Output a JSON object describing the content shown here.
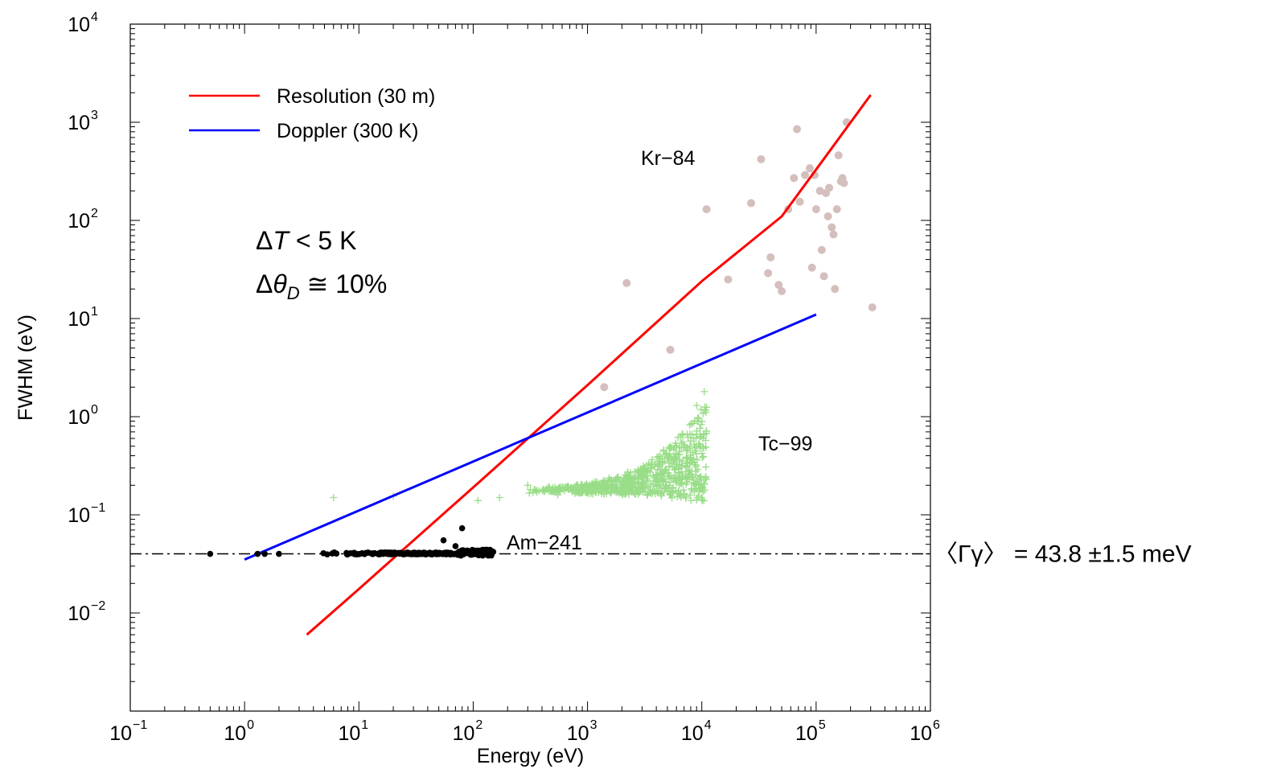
{
  "chart_data": {
    "type": "scatter",
    "x_scale": "log",
    "y_scale": "log",
    "xlabel": "Energy (eV)",
    "ylabel": "FWHM (eV)",
    "xlim": [
      0.1,
      1000000
    ],
    "ylim": [
      0.001,
      10000
    ],
    "x_ticks": [
      {
        "base": "10",
        "exp": "−1"
      },
      {
        "base": "10",
        "exp": "0"
      },
      {
        "base": "10",
        "exp": "1"
      },
      {
        "base": "10",
        "exp": "2"
      },
      {
        "base": "10",
        "exp": "3"
      },
      {
        "base": "10",
        "exp": "4"
      },
      {
        "base": "10",
        "exp": "5"
      },
      {
        "base": "10",
        "exp": "6"
      }
    ],
    "y_ticks": [
      {
        "base": "10",
        "exp": "−2"
      },
      {
        "base": "10",
        "exp": "−1"
      },
      {
        "base": "10",
        "exp": "0"
      },
      {
        "base": "10",
        "exp": "1"
      },
      {
        "base": "10",
        "exp": "2"
      },
      {
        "base": "10",
        "exp": "3"
      },
      {
        "base": "10",
        "exp": "4"
      }
    ],
    "grid": false,
    "legend_position": "top-left",
    "legend": [
      {
        "label": "Resolution (30 m)",
        "color": "#ff0000"
      },
      {
        "label": "Doppler (300 K)",
        "color": "#0000ff"
      }
    ],
    "lines": [
      {
        "name": "Resolution (30 m)",
        "color": "#ff0000",
        "x": [
          3.5,
          10,
          20,
          100,
          1000,
          10000,
          50000,
          100000,
          300000
        ],
        "y": [
          0.006,
          0.0175,
          0.036,
          0.19,
          2.1,
          24,
          110,
          330,
          1900
        ]
      },
      {
        "name": "Doppler (300 K)",
        "color": "#0000ff",
        "x": [
          1,
          100000
        ],
        "y": [
          0.035,
          11
        ]
      }
    ],
    "reference_line": {
      "y": 0.04,
      "style": "dash-dot",
      "color": "#000000",
      "label": "〈Γγ〉 = 43.8 ±1.5 meV"
    },
    "series": [
      {
        "name": "Kr-84",
        "label_text": "Kr−84",
        "marker": "circle",
        "color": "#d4bfbd",
        "points": [
          [
            1400,
            2
          ],
          [
            2200,
            23
          ],
          [
            5300,
            4.8
          ],
          [
            11000,
            130
          ],
          [
            17000,
            25
          ],
          [
            27000,
            150
          ],
          [
            33000,
            420
          ],
          [
            38000,
            29
          ],
          [
            40000,
            42
          ],
          [
            47000,
            22
          ],
          [
            50000,
            19
          ],
          [
            57000,
            130
          ],
          [
            64000,
            270
          ],
          [
            68000,
            850
          ],
          [
            72000,
            155
          ],
          [
            80000,
            290
          ],
          [
            88000,
            340
          ],
          [
            92000,
            33
          ],
          [
            97000,
            290
          ],
          [
            100000,
            130
          ],
          [
            108000,
            200
          ],
          [
            112000,
            50
          ],
          [
            117000,
            27
          ],
          [
            122000,
            190
          ],
          [
            127000,
            110
          ],
          [
            130000,
            215
          ],
          [
            137000,
            85
          ],
          [
            142000,
            72
          ],
          [
            146000,
            20
          ],
          [
            152000,
            130
          ],
          [
            157000,
            460
          ],
          [
            165000,
            250
          ],
          [
            170000,
            270
          ],
          [
            175000,
            240
          ],
          [
            185000,
            1000
          ],
          [
            310000,
            13
          ]
        ]
      },
      {
        "name": "Tc-99",
        "label_text": "Tc−99",
        "marker": "plus",
        "color": "#99dd88",
        "generator": {
          "x_min": 300,
          "x_max": 11000,
          "count": 700,
          "seed": 7,
          "base_y": 0.17,
          "outliers": [
            [
              6,
              0.15
            ],
            [
              20,
              0.155
            ],
            [
              110,
              0.14
            ],
            [
              170,
              0.15
            ],
            [
              300,
              0.2
            ],
            [
              550,
              0.16
            ],
            [
              9000,
              1.3
            ],
            [
              10500,
              1.8
            ]
          ]
        }
      },
      {
        "name": "Am-241",
        "label_text": "Am−241",
        "marker": "circle",
        "color": "#000000",
        "generator": {
          "x_min": 4,
          "x_max": 150,
          "count": 260,
          "seed": 3,
          "base_y": 0.04,
          "outliers": [
            [
              0.5,
              0.04
            ],
            [
              1.3,
              0.04
            ],
            [
              1.5,
              0.04
            ],
            [
              2,
              0.04
            ],
            [
              55,
              0.055
            ],
            [
              70,
              0.048
            ],
            [
              80,
              0.073
            ]
          ]
        }
      }
    ],
    "annotations": [
      {
        "id": "delta-t",
        "text_prefix": "Δ",
        "italic": "T",
        "text_suffix": " < 5 K"
      },
      {
        "id": "delta-theta",
        "text_prefix": "Δ",
        "italic": "θ",
        "subscript": "D",
        "text_suffix": " ≅ 10%"
      }
    ]
  }
}
